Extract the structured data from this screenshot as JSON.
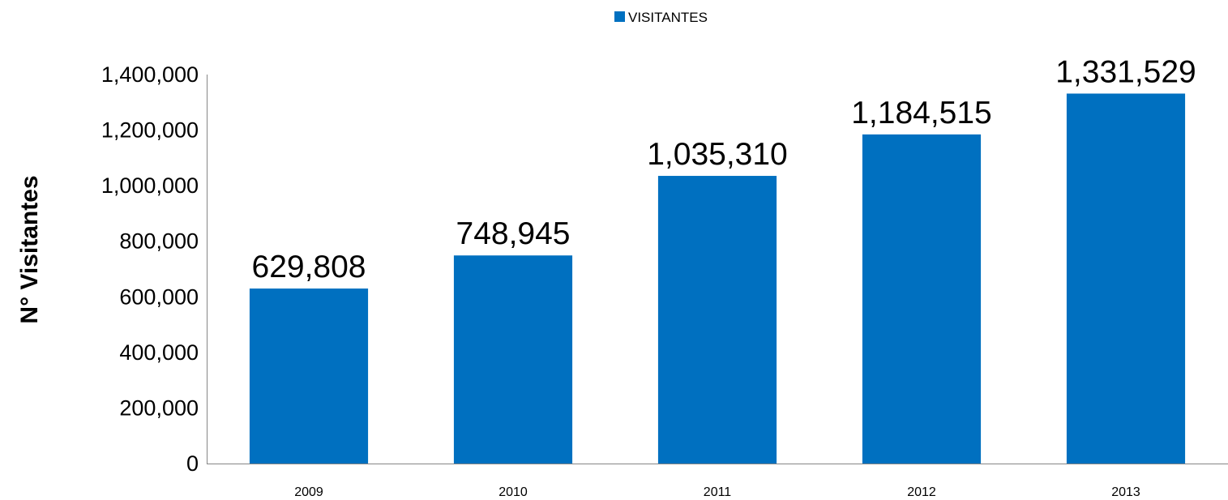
{
  "chart_data": {
    "type": "bar",
    "categories": [
      "2009",
      "2010",
      "2011",
      "2012",
      "2013"
    ],
    "series": [
      {
        "name": "VISITANTES",
        "values": [
          629808,
          748945,
          1035310,
          1184515,
          1331529
        ],
        "color": "#0070C0"
      }
    ],
    "data_labels": [
      "629,808",
      "748,945",
      "1,035,310",
      "1,184,515",
      "1,331,529"
    ],
    "ylabel": "N° Visitantes",
    "xlabel": "",
    "ylim": [
      0,
      1400000
    ],
    "yticks": [
      0,
      200000,
      400000,
      600000,
      800000,
      1000000,
      1200000,
      1400000
    ],
    "ytick_labels": [
      "0",
      "200,000",
      "400,000",
      "600,000",
      "800,000",
      "1,000,000",
      "1,200,000",
      "1,400,000"
    ],
    "legend_position": "top-center",
    "grid": false
  }
}
